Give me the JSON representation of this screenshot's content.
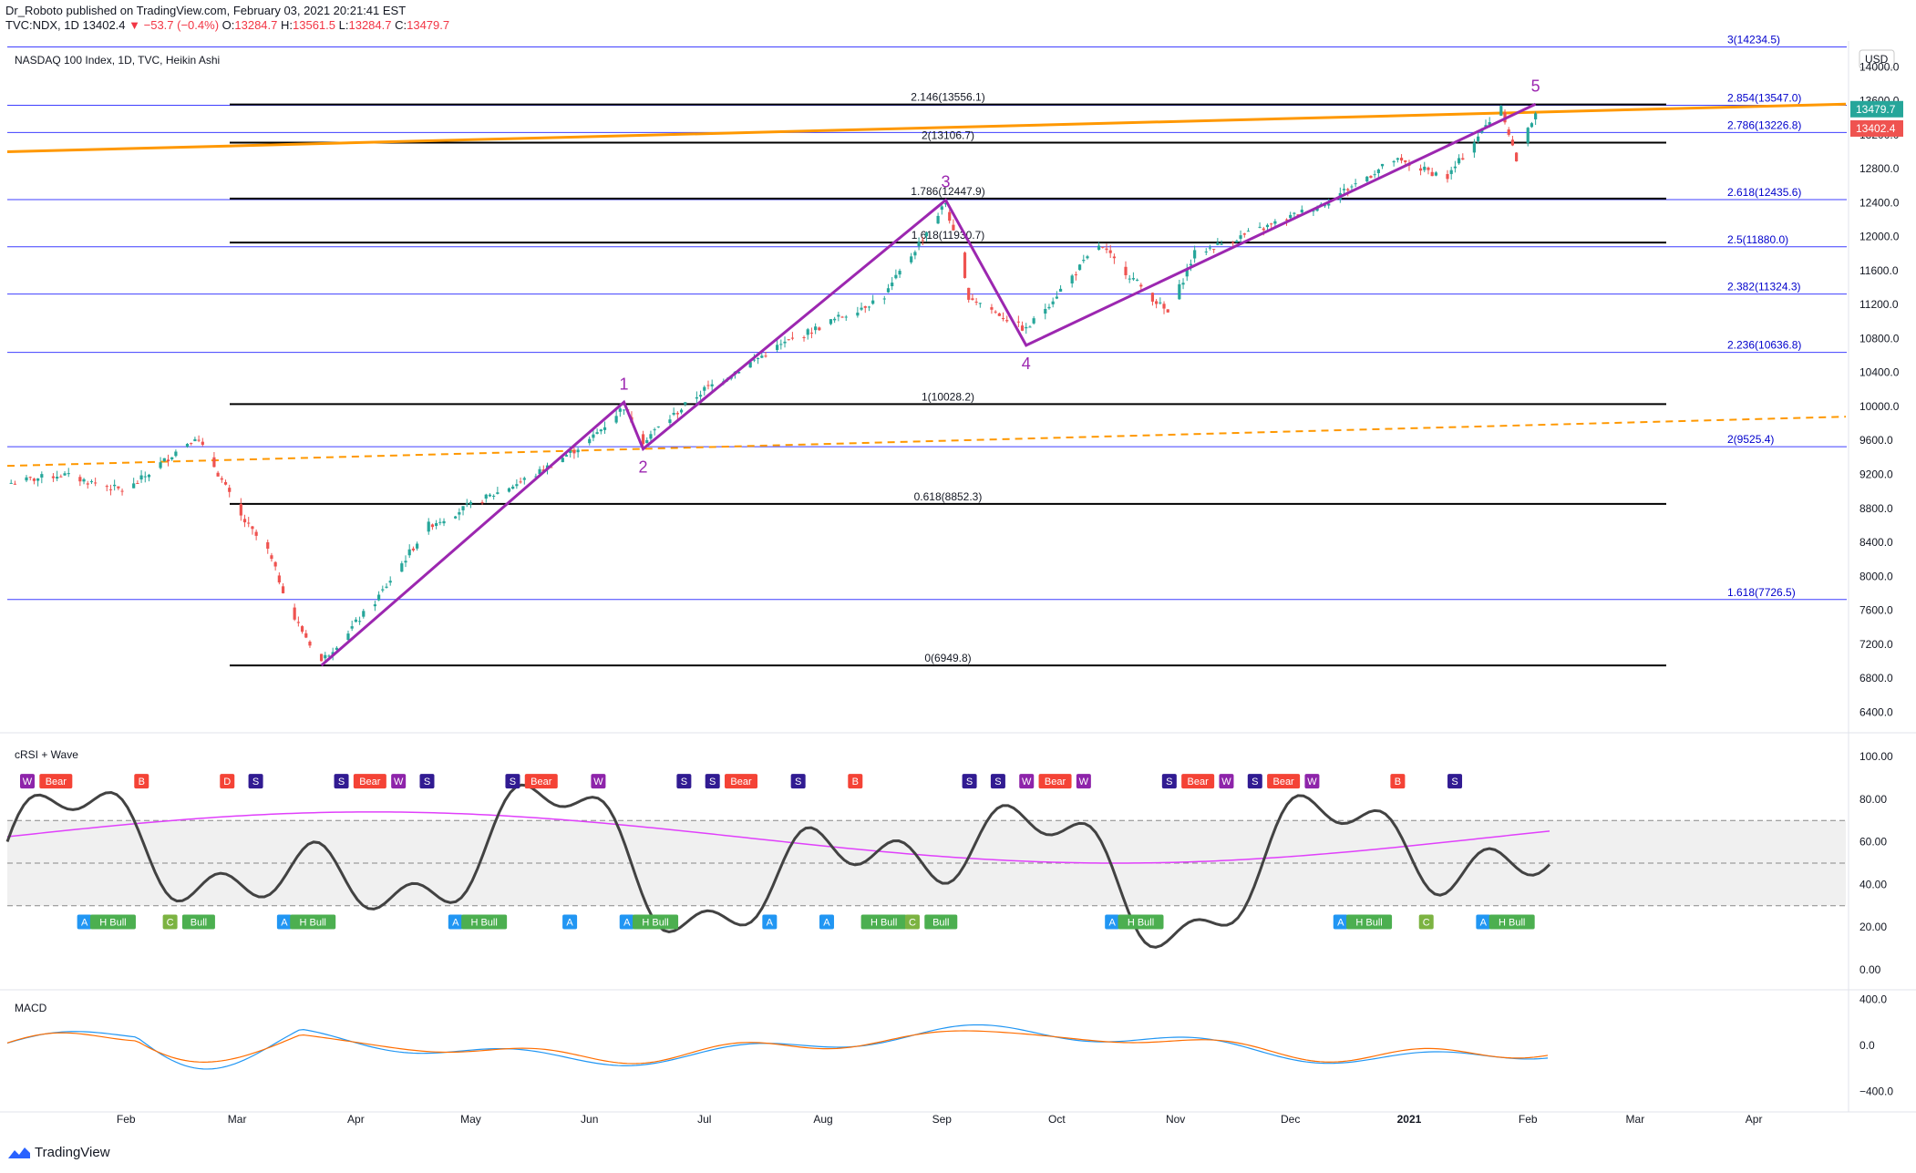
{
  "header": {
    "publisher": "Dr_Roboto",
    "published_text": "published on TradingView.com, February 03, 2021 20:21:41 EST",
    "symbol": "TVC:NDX, 1D",
    "last": "13402.4",
    "change": "▼ −53.7 (−0.4%)",
    "ohlc": {
      "o": "13284.7",
      "h": "13561.5",
      "l": "13284.7",
      "c": "13479.7"
    }
  },
  "pane_title": "NASDAQ 100 Index, 1D, TVC, Heikin Ashi",
  "currency": "USD",
  "indicators": {
    "rsi_title": "cRSI + Wave",
    "macd_title": "MACD"
  },
  "brand": "TradingView",
  "colors": {
    "up": "#26a69a",
    "down": "#ef5350",
    "wave": "#9c27b0",
    "trend": "#ff9800",
    "fib_blue": "#3f3fff",
    "fib_black": "#000000"
  },
  "price_axis": {
    "ticks": [
      "14000.0",
      "13600.0",
      "13200.0",
      "12800.0",
      "12400.0",
      "12000.0",
      "11600.0",
      "11200.0",
      "10800.0",
      "10400.0",
      "10000.0",
      "9600.0",
      "9200.0",
      "8800.0",
      "8400.0",
      "8000.0",
      "7600.0",
      "7200.0",
      "6800.0",
      "6400.0"
    ],
    "last_labels": [
      {
        "text": "13479.7",
        "color": "#26a69a"
      },
      {
        "text": "13402.4",
        "color": "#ef5350"
      }
    ]
  },
  "rsi_axis": {
    "ticks": [
      "100.00",
      "80.00",
      "60.00",
      "40.00",
      "20.00",
      "0.00"
    ]
  },
  "macd_axis": {
    "ticks": [
      "400.0",
      "0.0",
      "−400.0"
    ]
  },
  "time_axis": {
    "ticks": [
      "Feb",
      "Mar",
      "Apr",
      "May",
      "Jun",
      "Jul",
      "Aug",
      "Sep",
      "Oct",
      "Nov",
      "Dec",
      "2021",
      "Feb",
      "Mar",
      "Apr"
    ]
  },
  "chart_data": {
    "type": "candlestick",
    "style": "Heikin Ashi",
    "symbol": "NASDAQ 100 Index",
    "timeframe": "1D",
    "x_range": [
      "2020-01-01",
      "2021-04-25"
    ],
    "y_range": [
      6200,
      14250
    ],
    "closes": [
      {
        "d": "2020-01-02",
        "c": 9100
      },
      {
        "d": "2020-01-15",
        "c": 9200
      },
      {
        "d": "2020-02-01",
        "c": 9000
      },
      {
        "d": "2020-02-19",
        "c": 9650
      },
      {
        "d": "2020-02-24",
        "c": 9300
      },
      {
        "d": "2020-03-02",
        "c": 8700
      },
      {
        "d": "2020-03-09",
        "c": 8300
      },
      {
        "d": "2020-03-16",
        "c": 7500
      },
      {
        "d": "2020-03-23",
        "c": 7000
      },
      {
        "d": "2020-04-06",
        "c": 7700
      },
      {
        "d": "2020-04-20",
        "c": 8600
      },
      {
        "d": "2020-05-04",
        "c": 8900
      },
      {
        "d": "2020-05-18",
        "c": 9200
      },
      {
        "d": "2020-06-01",
        "c": 9600
      },
      {
        "d": "2020-06-10",
        "c": 10000
      },
      {
        "d": "2020-06-15",
        "c": 9600
      },
      {
        "d": "2020-07-01",
        "c": 10200
      },
      {
        "d": "2020-07-20",
        "c": 10700
      },
      {
        "d": "2020-08-03",
        "c": 11000
      },
      {
        "d": "2020-08-17",
        "c": 11300
      },
      {
        "d": "2020-09-02",
        "c": 12400
      },
      {
        "d": "2020-09-08",
        "c": 11300
      },
      {
        "d": "2020-09-23",
        "c": 10900
      },
      {
        "d": "2020-10-12",
        "c": 11900
      },
      {
        "d": "2020-10-30",
        "c": 11100
      },
      {
        "d": "2020-11-06",
        "c": 11800
      },
      {
        "d": "2020-11-24",
        "c": 12100
      },
      {
        "d": "2020-12-10",
        "c": 12400
      },
      {
        "d": "2020-12-28",
        "c": 12900
      },
      {
        "d": "2021-01-11",
        "c": 12700
      },
      {
        "d": "2021-01-25",
        "c": 13550
      },
      {
        "d": "2021-01-29",
        "c": 12900
      },
      {
        "d": "2021-02-03",
        "c": 13480
      }
    ],
    "fib_levels": [
      {
        "label": "3(14234.5)",
        "value": 14234.5,
        "color": "blue"
      },
      {
        "label": "2.854(13547.0)",
        "value": 13547.0,
        "color": "blue"
      },
      {
        "label": "2.786(13226.8)",
        "value": 13226.8,
        "color": "blue"
      },
      {
        "label": "2.618(12435.6)",
        "value": 12435.6,
        "color": "blue"
      },
      {
        "label": "2.5(11880.0)",
        "value": 11880.0,
        "color": "blue"
      },
      {
        "label": "2.382(11324.3)",
        "value": 11324.3,
        "color": "blue"
      },
      {
        "label": "2.236(10636.8)",
        "value": 10636.8,
        "color": "blue"
      },
      {
        "label": "2(9525.4)",
        "value": 9525.4,
        "color": "blue"
      },
      {
        "label": "1.618(7726.5)",
        "value": 7726.5,
        "color": "blue"
      },
      {
        "label": "2.146(13556.1)",
        "value": 13556.1,
        "color": "black"
      },
      {
        "label": "2(13106.7)",
        "value": 13106.7,
        "color": "black"
      },
      {
        "label": "1.786(12447.9)",
        "value": 12447.9,
        "color": "black"
      },
      {
        "label": "1.618(11930.7)",
        "value": 11930.7,
        "color": "black"
      },
      {
        "label": "1(10028.2)",
        "value": 10028.2,
        "color": "black"
      },
      {
        "label": "0.618(8852.3)",
        "value": 8852.3,
        "color": "black"
      },
      {
        "label": "0(6949.8)",
        "value": 6949.8,
        "color": "black"
      }
    ],
    "elliott_wave": [
      {
        "label": "",
        "d": "2020-03-23",
        "v": 6950
      },
      {
        "label": "1",
        "d": "2020-06-10",
        "v": 10050
      },
      {
        "label": "2",
        "d": "2020-06-15",
        "v": 9500
      },
      {
        "label": "3",
        "d": "2020-09-02",
        "v": 12430
      },
      {
        "label": "4",
        "d": "2020-09-23",
        "v": 10720
      },
      {
        "label": "5",
        "d": "2021-02-03",
        "v": 13560
      }
    ],
    "trendlines": [
      {
        "style": "solid",
        "from": {
          "d": "2020-01-01",
          "v": 13000
        },
        "to": {
          "d": "2021-04-25",
          "v": 13560
        }
      },
      {
        "style": "dashed",
        "from": {
          "d": "2020-01-01",
          "v": 9300
        },
        "to": {
          "d": "2021-04-25",
          "v": 9880
        }
      }
    ],
    "crsi": {
      "ylim": [
        0,
        100
      ],
      "levels": [
        30,
        50,
        70
      ],
      "signals": [
        "W",
        "Bear",
        "A",
        "H Bull",
        "B",
        "C",
        "Bull",
        "D",
        "S",
        "A",
        "H Bull",
        "S",
        "Bear",
        "W",
        "S",
        "A",
        "H Bull",
        "S",
        "Bear",
        "A",
        "W",
        "A",
        "H Bull",
        "S",
        "S",
        "Bear",
        "A",
        "S",
        "A",
        "B",
        "H Bull",
        "C",
        "Bull",
        "S",
        "S",
        "W",
        "Bear",
        "W",
        "A",
        "H Bull",
        "S",
        "Bear",
        "W",
        "S",
        "Bear",
        "W",
        "A",
        "H Bull",
        "B",
        "C",
        "S",
        "A",
        "H Bull"
      ]
    },
    "macd": {
      "ylim": [
        -500,
        450
      ]
    }
  }
}
